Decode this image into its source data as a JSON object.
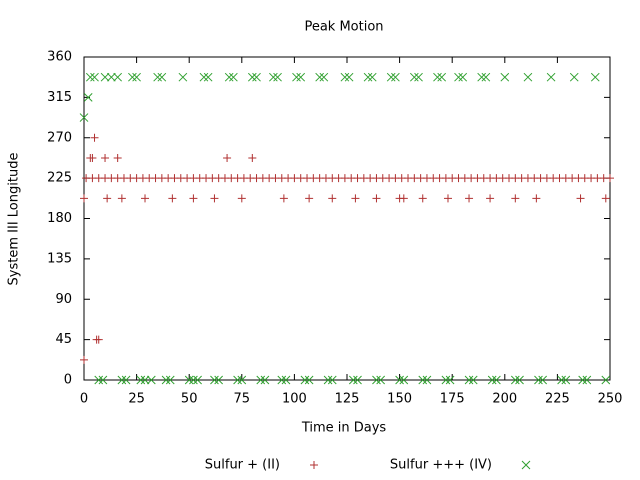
{
  "chart_data": {
    "type": "scatter",
    "title": "Peak Motion",
    "xlabel": "Time in Days",
    "ylabel": "System III Longitude",
    "xlim": [
      0,
      250
    ],
    "xticks": [
      0,
      25,
      50,
      75,
      100,
      125,
      150,
      175,
      200,
      225,
      250
    ],
    "ylim": [
      0,
      360
    ],
    "yticks": [
      0,
      45,
      90,
      135,
      180,
      225,
      270,
      315,
      360
    ],
    "legend": "bottom",
    "series": [
      {
        "name": "Sulfur + (II)",
        "color": "#b03030",
        "x": [
          0,
          0,
          3,
          4,
          5,
          6,
          7,
          10,
          11,
          16,
          18,
          29,
          42,
          52,
          62,
          68,
          75,
          80,
          95,
          107,
          118,
          129,
          139,
          150,
          152,
          161,
          173,
          183,
          193,
          205,
          215,
          236,
          248,
          1,
          4,
          7,
          10,
          13,
          16,
          19,
          22,
          25,
          28,
          31,
          34,
          37,
          40,
          43,
          46,
          49,
          52,
          55,
          58,
          61,
          64,
          67,
          70,
          73,
          76,
          79,
          82,
          85,
          88,
          91,
          94,
          97,
          100,
          103,
          106,
          109,
          112,
          115,
          118,
          121,
          124,
          127,
          130,
          133,
          136,
          139,
          142,
          145,
          148,
          151,
          154,
          157,
          160,
          163,
          166,
          169,
          172,
          175,
          178,
          181,
          184,
          187,
          190,
          193,
          196,
          199,
          202,
          205,
          208,
          211,
          214,
          217,
          220,
          223,
          226,
          229,
          232,
          235,
          238,
          241,
          244,
          247,
          250
        ],
        "values": [
          22.5,
          202.5,
          247.5,
          247.5,
          270,
          45,
          45,
          247.5,
          202.5,
          247.5,
          202.5,
          202.5,
          202.5,
          202.5,
          202.5,
          247.5,
          202.5,
          247.5,
          202.5,
          202.5,
          202.5,
          202.5,
          202.5,
          202.5,
          202.5,
          202.5,
          202.5,
          202.5,
          202.5,
          202.5,
          202.5,
          202.5,
          202.5,
          225,
          225,
          225,
          225,
          225,
          225,
          225,
          225,
          225,
          225,
          225,
          225,
          225,
          225,
          225,
          225,
          225,
          225,
          225,
          225,
          225,
          225,
          225,
          225,
          225,
          225,
          225,
          225,
          225,
          225,
          225,
          225,
          225,
          225,
          225,
          225,
          225,
          225,
          225,
          225,
          225,
          225,
          225,
          225,
          225,
          225,
          225,
          225,
          225,
          225,
          225,
          225,
          225,
          225,
          225,
          225,
          225,
          225,
          225,
          225,
          225,
          225,
          225,
          225,
          225,
          225,
          225,
          225,
          225,
          225,
          225,
          225,
          225,
          225,
          225,
          225,
          225,
          225,
          225,
          225,
          225,
          225,
          225,
          225
        ]
      },
      {
        "name": "Sulfur +++ (IV)",
        "color": "#30a030",
        "x": [
          0,
          2,
          3,
          5,
          10,
          13,
          16,
          23,
          25,
          35,
          37,
          47,
          57,
          59,
          69,
          71,
          80,
          82,
          90,
          92,
          101,
          103,
          112,
          114,
          124,
          126,
          135,
          137,
          146,
          148,
          157,
          159,
          168,
          170,
          178,
          180,
          189,
          191,
          200,
          211,
          222,
          233,
          243,
          7,
          9,
          18,
          20,
          27,
          29,
          32,
          39,
          41,
          50,
          52,
          54,
          62,
          64,
          73,
          75,
          84,
          86,
          94,
          96,
          105,
          107,
          116,
          118,
          128,
          130,
          139,
          141,
          150,
          152,
          161,
          163,
          172,
          174,
          183,
          185,
          194,
          196,
          205,
          207,
          216,
          218,
          227,
          229,
          237,
          239,
          248
        ],
        "values": [
          292.5,
          315,
          337.5,
          337.5,
          337.5,
          337.5,
          337.5,
          337.5,
          337.5,
          337.5,
          337.5,
          337.5,
          337.5,
          337.5,
          337.5,
          337.5,
          337.5,
          337.5,
          337.5,
          337.5,
          337.5,
          337.5,
          337.5,
          337.5,
          337.5,
          337.5,
          337.5,
          337.5,
          337.5,
          337.5,
          337.5,
          337.5,
          337.5,
          337.5,
          337.5,
          337.5,
          337.5,
          337.5,
          337.5,
          337.5,
          337.5,
          337.5,
          337.5,
          0,
          0,
          0,
          0,
          0,
          0,
          0,
          0,
          0,
          0,
          0,
          0,
          0,
          0,
          0,
          0,
          0,
          0,
          0,
          0,
          0,
          0,
          0,
          0,
          0,
          0,
          0,
          0,
          0,
          0,
          0,
          0,
          0,
          0,
          0,
          0,
          0,
          0,
          0,
          0,
          0,
          0,
          0,
          0,
          0,
          0,
          0
        ]
      }
    ]
  }
}
